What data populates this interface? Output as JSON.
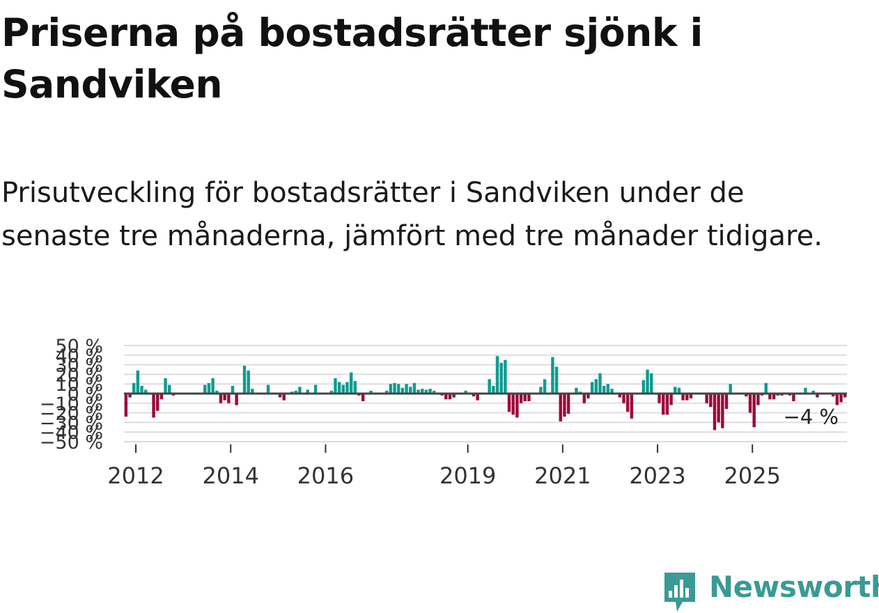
{
  "title": "Priserna på bostadsrätter sjönk i Sandviken",
  "subtitle": "Prisutveckling för bostadsrätter i Sandviken under de senaste tre månaderna, jämfört med tre månader tidigare.",
  "brand": {
    "name": "Newsworthy",
    "color": "#3a9a94",
    "icon": "newsworthy-logo-icon"
  },
  "colors": {
    "positive": "#0f9b90",
    "negative": "#9b0a3d",
    "zero_line": "#444444"
  },
  "chart_data": {
    "type": "bar",
    "title": "Priserna på bostadsrätter sjönk i Sandviken",
    "xlabel": "",
    "ylabel": "",
    "ylim": [
      -50,
      50
    ],
    "yticks": [
      -50,
      -40,
      -30,
      -20,
      -10,
      0,
      10,
      20,
      30,
      40,
      50
    ],
    "ytick_labels": [
      "−50 %",
      "−40 %",
      "−30 %",
      "−20 %",
      "−10 %",
      "0 %",
      "10 %",
      "20 %",
      "30 %",
      "40 %",
      "50 %"
    ],
    "xticks": [
      2012,
      2014,
      2016,
      2019,
      2021,
      2023,
      2025
    ],
    "x_start": 2011.75,
    "step": 0.0833,
    "annotation": {
      "text": "−4 %",
      "value": -4
    },
    "values": [
      -24,
      -4,
      11,
      24,
      8,
      4,
      -1,
      -25,
      -18,
      -6,
      16,
      9,
      -2,
      0,
      0,
      0,
      0,
      0,
      0,
      0,
      9,
      11,
      16,
      3,
      -10,
      -7,
      -10,
      8,
      -12,
      -1,
      29,
      24,
      5,
      0,
      0,
      0,
      9,
      0,
      0,
      -4,
      -7,
      0,
      2,
      3,
      7,
      0,
      4,
      0,
      9,
      0,
      -1,
      0,
      3,
      16,
      12,
      9,
      12,
      22,
      13,
      -2,
      -8,
      -1,
      3,
      0,
      0,
      0,
      3,
      10,
      11,
      10,
      6,
      10,
      7,
      11,
      4,
      5,
      4,
      5,
      3,
      1,
      -2,
      -6,
      -6,
      -4,
      0,
      0,
      3,
      0,
      -3,
      -7,
      0,
      0,
      15,
      8,
      39,
      32,
      35,
      -19,
      -22,
      -25,
      -10,
      -8,
      -8,
      0,
      0,
      7,
      15,
      0,
      38,
      28,
      -29,
      -24,
      -21,
      0,
      6,
      2,
      -10,
      -5,
      12,
      15,
      21,
      8,
      10,
      5,
      0,
      -4,
      -10,
      -19,
      -26,
      0,
      0,
      14,
      25,
      21,
      0,
      -10,
      -22,
      -22,
      -12,
      7,
      6,
      -7,
      -7,
      -5,
      0,
      0,
      0,
      -10,
      -14,
      -38,
      -30,
      -36,
      -16,
      10,
      0,
      0,
      0,
      -3,
      -20,
      -35,
      -12,
      -2,
      11,
      -6,
      -6,
      -2,
      -2,
      -1,
      -2,
      -8,
      0,
      0,
      6,
      0,
      3,
      -4,
      0,
      0,
      0,
      -3,
      -12,
      -9,
      -4
    ],
    "value_unit": "%"
  }
}
